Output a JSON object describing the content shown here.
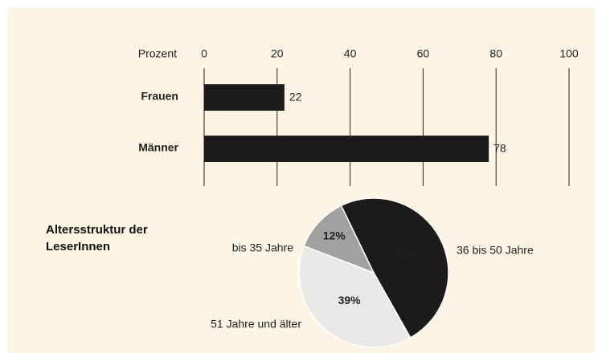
{
  "chart_data": [
    {
      "type": "bar",
      "x_label": "Prozent",
      "categories": [
        "Frauen",
        "Männer"
      ],
      "values": [
        22,
        78
      ],
      "color": "#1c1a1b",
      "xlim": [
        0,
        100
      ],
      "xticks": [
        0,
        20,
        40,
        60,
        80,
        100
      ],
      "grid": true
    },
    {
      "type": "pie",
      "title": "Altersstruktur der LeserInnen",
      "categories": [
        "bis 35 Jahre",
        "36 bis 50 Jahre",
        "51 Jahre und älter"
      ],
      "values": [
        12,
        49,
        39
      ],
      "value_labels": [
        "12%",
        "49%",
        "39%"
      ],
      "colors": [
        "#a3a19f",
        "#1c1a1b",
        "#e9e8e7"
      ]
    }
  ]
}
